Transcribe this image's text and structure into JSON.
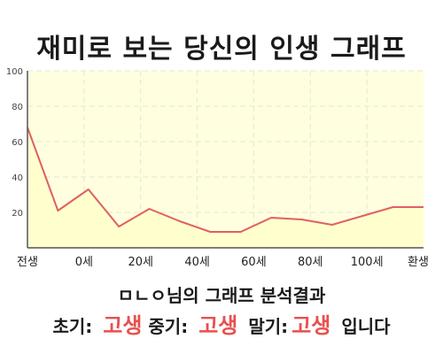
{
  "title": "재미로 보는 당신의 인생 그래프",
  "chart_data": {
    "type": "area",
    "categories": [
      "전생",
      "0세",
      "20세",
      "40세",
      "60세",
      "80세",
      "100세",
      "환생"
    ],
    "x": [
      -10,
      0,
      10,
      20,
      30,
      40,
      50,
      60,
      70,
      80,
      90,
      100,
      110,
      120
    ],
    "values": [
      68,
      21,
      33,
      12,
      22,
      15,
      9,
      9,
      17,
      16,
      13,
      18,
      23,
      23
    ],
    "ylim": [
      0,
      100
    ],
    "yticks": [
      20,
      40,
      60,
      80,
      100
    ],
    "grid": true,
    "colors": {
      "line": "#e06060",
      "fill": "#ffffcc",
      "grid": "#e6e6d0",
      "axis": "#555555"
    }
  },
  "summary": {
    "heading": "ㅁㄴㅇ님의 그래프 분석결과",
    "early_label": "초기:",
    "early_value": "고생",
    "mid_label": "중기:",
    "mid_value": "고생",
    "late_label": "말기:",
    "late_value": "고생",
    "ending": "입니다"
  }
}
